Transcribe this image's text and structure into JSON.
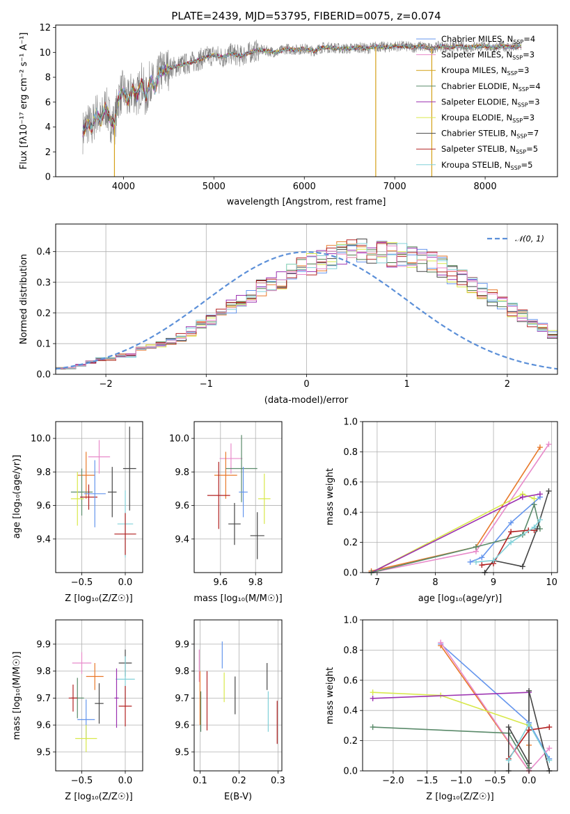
{
  "colors": [
    "#6495ed",
    "#e8792a",
    "#d4a017",
    "#4a7a4a",
    "#9b30b0",
    "#d8e84a",
    "#454545",
    "#b22222",
    "#80d0d8",
    "#e88aca",
    "#808080",
    "#5a8a6a"
  ],
  "chart_data": [
    {
      "type": "line",
      "title": "PLATE=2439, MJD=53795, FIBERID=0075, z=0.074",
      "xlabel": "wavelength [Angstrom, rest frame]",
      "ylabel": "Flux [fλ10⁻¹⁷ erg cm⁻² s⁻¹ A⁻¹]",
      "xlim": [
        3250,
        8800
      ],
      "ylim": [
        0,
        12.2
      ],
      "xticks": [
        4000,
        5000,
        6000,
        7000,
        8000
      ],
      "yticks": [
        0,
        2,
        4,
        6,
        8,
        10,
        12
      ],
      "legend_position": "right",
      "legend": [
        {
          "label": "Chabrier MILES, N",
          "sub": "SSP",
          "tail": "=4",
          "color": "#6495ed"
        },
        {
          "label": "Salpeter MILES, N",
          "sub": "SSP",
          "tail": "=3",
          "color": "#e88aca"
        },
        {
          "label": "Kroupa MILES, N",
          "sub": "SSP",
          "tail": "=3",
          "color": "#d4a017"
        },
        {
          "label": "Chabrier ELODIE, N",
          "sub": "SSP",
          "tail": "=4",
          "color": "#5a8a6a"
        },
        {
          "label": "Salpeter ELODIE, N",
          "sub": "SSP",
          "tail": "=3",
          "color": "#9b30b0"
        },
        {
          "label": "Kroupa ELODIE, N",
          "sub": "SSP",
          "tail": "=3",
          "color": "#d8e84a"
        },
        {
          "label": "Chabrier STELIB, N",
          "sub": "SSP",
          "tail": "=7",
          "color": "#454545"
        },
        {
          "label": "Salpeter STELIB, N",
          "sub": "SSP",
          "tail": "=5",
          "color": "#b22222"
        },
        {
          "label": "Kroupa STELIB, N",
          "sub": "SSP",
          "tail": "=5",
          "color": "#80d0d8"
        }
      ],
      "series": [
        {
          "x": [
            3550,
            3600,
            3650,
            3700,
            3750,
            3800,
            3850,
            3900,
            3950,
            4000,
            4050,
            4100,
            4150,
            4200,
            4250,
            4300,
            4350,
            4400,
            4500,
            4600,
            4700,
            4800,
            4900,
            5000,
            5100,
            5200,
            5300,
            5400,
            5500,
            5600,
            5700,
            5800,
            5900,
            6000,
            6100,
            6200,
            6300,
            6400,
            6500,
            6600,
            6700,
            6800,
            6900,
            7000,
            7100,
            7200,
            7300,
            7400,
            7500,
            7600,
            7700,
            7800,
            7900,
            8000,
            8100,
            8200,
            8300,
            8400
          ],
          "y": [
            3.6,
            4.3,
            3.9,
            5.2,
            4.4,
            5.7,
            4.6,
            4.2,
            6.5,
            6.9,
            6.0,
            7.1,
            6.4,
            7.6,
            6.3,
            7.9,
            7.0,
            8.4,
            8.7,
            8.9,
            9.1,
            9.3,
            9.6,
            9.8,
            9.6,
            9.9,
            9.7,
            10.0,
            10.2,
            10.1,
            10.0,
            10.3,
            10.2,
            10.3,
            10.1,
            10.4,
            10.4,
            10.3,
            10.3,
            10.4,
            10.3,
            10.5,
            10.4,
            10.5,
            10.5,
            10.4,
            10.5,
            10.3,
            10.5,
            10.4,
            10.5,
            10.4,
            10.5,
            10.5,
            10.4,
            10.5,
            10.4,
            10.5
          ]
        }
      ]
    },
    {
      "type": "histogram",
      "xlabel": "(data-model)/error",
      "ylabel": "Normed distribution",
      "xlim": [
        -2.5,
        2.5
      ],
      "ylim": [
        0,
        0.49
      ],
      "xticks": [
        -2,
        -1,
        0,
        1,
        2
      ],
      "yticks": [
        0.0,
        0.1,
        0.2,
        0.3,
        0.4
      ],
      "bin_width": 0.1,
      "bin_start": -2.5,
      "reference": {
        "label": "𝒩(0, 1)",
        "mean": 0,
        "sigma": 1,
        "color": "#5b8fd8"
      },
      "legend_position": "top-right",
      "series": [
        {
          "values": [
            0.02,
            0.02,
            0.03,
            0.04,
            0.05,
            0.05,
            0.06,
            0.06,
            0.08,
            0.09,
            0.1,
            0.11,
            0.12,
            0.14,
            0.16,
            0.18,
            0.2,
            0.22,
            0.24,
            0.26,
            0.28,
            0.3,
            0.31,
            0.33,
            0.35,
            0.36,
            0.37,
            0.38,
            0.39,
            0.4,
            0.41,
            0.4,
            0.4,
            0.39,
            0.39,
            0.38,
            0.37,
            0.36,
            0.35,
            0.33,
            0.31,
            0.29,
            0.27,
            0.25,
            0.23,
            0.21,
            0.19,
            0.17,
            0.15,
            0.13,
            0.11,
            0.1,
            0.09,
            0.08,
            0.07,
            0.06,
            0.05,
            0.04,
            0.03,
            0.03
          ]
        }
      ]
    },
    {
      "type": "scatter",
      "xlabel": "Z [log₁₀(Z/Z☉)]",
      "ylabel": "age  [log₁₀(age/yr)]",
      "xlim": [
        -0.8,
        0.2
      ],
      "ylim": [
        9.2,
        10.1
      ],
      "xticks": [
        -0.5,
        0.0
      ],
      "yticks": [
        9.4,
        9.6,
        9.8,
        10.0
      ],
      "points": [
        {
          "x": -0.3,
          "y": 9.89,
          "dx": 0.25,
          "dy": 0.2
        },
        {
          "x": -0.45,
          "y": 9.78,
          "dx": 0.2,
          "dy": 0.28
        },
        {
          "x": -0.5,
          "y": 9.68,
          "dx": 0.25,
          "dy": 0.28
        },
        {
          "x": -0.42,
          "y": 9.65,
          "dx": 0.2,
          "dy": 0.15
        },
        {
          "x": -0.35,
          "y": 9.67,
          "dx": 0.25,
          "dy": 0.4
        },
        {
          "x": -0.55,
          "y": 9.64,
          "dx": 0.15,
          "dy": 0.32
        },
        {
          "x": -0.15,
          "y": 9.68,
          "dx": 0.1,
          "dy": 0.3
        },
        {
          "x": 0.05,
          "y": 9.82,
          "dx": 0.15,
          "dy": 0.5
        },
        {
          "x": 0.0,
          "y": 9.49,
          "dx": 0.18,
          "dy": 0.4
        },
        {
          "x": 0.0,
          "y": 9.43,
          "dx": 0.25,
          "dy": 0.25
        }
      ]
    },
    {
      "type": "scatter",
      "xlabel": "mass [log₁₀(M/M☉)]",
      "ylabel": "",
      "xlim": [
        9.45,
        9.95
      ],
      "ylim": [
        9.2,
        10.1
      ],
      "xticks": [
        9.6,
        9.8
      ],
      "yticks": [
        9.4,
        9.6,
        9.8,
        10.0
      ],
      "points": [
        {
          "x": 9.66,
          "y": 9.88,
          "dx": 0.13,
          "dy": 0.18
        },
        {
          "x": 9.63,
          "y": 9.78,
          "dx": 0.13,
          "dy": 0.28
        },
        {
          "x": 9.72,
          "y": 9.82,
          "dx": 0.18,
          "dy": 0.4
        },
        {
          "x": 9.59,
          "y": 9.66,
          "dx": 0.13,
          "dy": 0.4
        },
        {
          "x": 9.73,
          "y": 9.68,
          "dx": 0.05,
          "dy": 0.3
        },
        {
          "x": 9.85,
          "y": 9.64,
          "dx": 0.07,
          "dy": 0.3
        },
        {
          "x": 9.68,
          "y": 9.49,
          "dx": 0.07,
          "dy": 0.25
        },
        {
          "x": 9.81,
          "y": 9.42,
          "dx": 0.08,
          "dy": 0.28
        }
      ]
    },
    {
      "type": "line",
      "xlabel": "age  [log₁₀(age/yr)]",
      "ylabel": "mass weight",
      "xlim": [
        6.75,
        10.1
      ],
      "ylim": [
        0,
        1.0
      ],
      "xticks": [
        7,
        8,
        9,
        10
      ],
      "yticks": [
        0.0,
        0.2,
        0.4,
        0.6,
        0.8,
        1.0
      ],
      "series": [
        {
          "x": [
            8.6,
            8.8,
            9.3,
            9.8
          ],
          "y": [
            0.07,
            0.1,
            0.33,
            0.5
          ]
        },
        {
          "x": [
            6.9,
            8.7,
            9.8
          ],
          "y": [
            0.01,
            0.17,
            0.83
          ]
        },
        {
          "x": [
            6.9,
            8.7,
            9.95
          ],
          "y": [
            0.0,
            0.14,
            0.85
          ]
        },
        {
          "x": [
            6.9,
            9.5,
            9.7
          ],
          "y": [
            0.0,
            0.52,
            0.49
          ]
        },
        {
          "x": [
            6.9,
            9.5,
            9.8
          ],
          "y": [
            0.0,
            0.5,
            0.52
          ]
        },
        {
          "x": [
            6.9,
            8.7,
            9.5,
            9.7,
            9.8
          ],
          "y": [
            0.0,
            0.17,
            0.25,
            0.45,
            0.29
          ]
        },
        {
          "x": [
            8.85,
            9.0,
            9.5,
            9.75,
            9.95
          ],
          "y": [
            0.0,
            0.08,
            0.04,
            0.29,
            0.54
          ]
        },
        {
          "x": [
            8.8,
            9.0,
            9.3,
            9.6,
            9.7
          ],
          "y": [
            0.05,
            0.06,
            0.27,
            0.28,
            0.28
          ]
        },
        {
          "x": [
            8.7,
            9.0,
            9.3,
            9.7,
            9.8
          ],
          "y": [
            0.07,
            0.08,
            0.2,
            0.3,
            0.35
          ]
        }
      ]
    },
    {
      "type": "scatter",
      "xlabel": "Z [log₁₀(Z/Z☉)]",
      "ylabel": "mass [log₁₀(M/M☉)]",
      "xlim": [
        -0.8,
        0.2
      ],
      "ylim": [
        9.43,
        9.99
      ],
      "xticks": [
        -0.5,
        0.0
      ],
      "yticks": [
        9.5,
        9.6,
        9.7,
        9.8,
        9.9
      ],
      "points": [
        {
          "x": -0.5,
          "y": 9.83,
          "dx": 0.22,
          "dy": 0.08
        },
        {
          "x": -0.35,
          "y": 9.78,
          "dx": 0.2,
          "dy": 0.1
        },
        {
          "x": -0.55,
          "y": 9.7,
          "dx": 0.15,
          "dy": 0.15
        },
        {
          "x": -0.6,
          "y": 9.7,
          "dx": 0.1,
          "dy": 0.1
        },
        {
          "x": -0.45,
          "y": 9.62,
          "dx": 0.2,
          "dy": 0.15
        },
        {
          "x": -0.45,
          "y": 9.55,
          "dx": 0.25,
          "dy": 0.1
        },
        {
          "x": -0.3,
          "y": 9.68,
          "dx": 0.1,
          "dy": 0.15
        },
        {
          "x": 0.0,
          "y": 9.83,
          "dx": 0.15,
          "dy": 0.1
        },
        {
          "x": 0.0,
          "y": 9.77,
          "dx": 0.22,
          "dy": 0.17
        },
        {
          "x": 0.0,
          "y": 9.67,
          "dx": 0.15,
          "dy": 0.15
        },
        {
          "x": -0.1,
          "y": 9.7,
          "dx": 0.05,
          "dy": 0.22
        }
      ]
    },
    {
      "type": "errorbar",
      "xlabel": "E(B-V)",
      "ylabel": "",
      "xlim": [
        0.085,
        0.31
      ],
      "ylim": [
        9.43,
        9.99
      ],
      "xticks": [
        0.1,
        0.2,
        0.3
      ],
      "yticks": [
        9.5,
        9.6,
        9.7,
        9.8,
        9.9
      ],
      "points": [
        {
          "x": 0.098,
          "y": 9.82,
          "dy": 0.12
        },
        {
          "x": 0.1,
          "y": 9.7,
          "dy": 0.2
        },
        {
          "x": 0.102,
          "y": 9.65,
          "dy": 0.15
        },
        {
          "x": 0.118,
          "y": 9.69,
          "dy": 0.22
        },
        {
          "x": 0.157,
          "y": 9.86,
          "dy": 0.1
        },
        {
          "x": 0.162,
          "y": 9.74,
          "dy": 0.11
        },
        {
          "x": 0.19,
          "y": 9.71,
          "dy": 0.14
        },
        {
          "x": 0.272,
          "y": 9.78,
          "dy": 0.1
        },
        {
          "x": 0.275,
          "y": 9.65,
          "dy": 0.15
        },
        {
          "x": 0.298,
          "y": 9.61,
          "dy": 0.16
        }
      ]
    },
    {
      "type": "line",
      "xlabel": "Z [log₁₀(Z/Z☉)]",
      "ylabel": "mass weight",
      "xlim": [
        -2.45,
        0.42
      ],
      "ylim": [
        0,
        1.0
      ],
      "xticks": [
        -2.0,
        -1.5,
        -1.0,
        -0.5,
        0.0
      ],
      "yticks": [
        0.0,
        0.2,
        0.4,
        0.6,
        0.8,
        1.0
      ],
      "series": [
        {
          "x": [
            -1.3,
            0.0,
            0.3
          ],
          "y": [
            0.84,
            0.32,
            0.08
          ]
        },
        {
          "x": [
            -1.3,
            0.0,
            0.0
          ],
          "y": [
            0.83,
            0.0,
            0.17
          ]
        },
        {
          "x": [
            -1.3,
            0.0,
            0.3
          ],
          "y": [
            0.85,
            0.0,
            0.15
          ]
        },
        {
          "x": [
            -2.3,
            -1.3,
            0.0
          ],
          "y": [
            0.52,
            0.5,
            0.3
          ]
        },
        {
          "x": [
            -2.3,
            0.0
          ],
          "y": [
            0.48,
            0.52
          ]
        },
        {
          "x": [
            -2.3,
            -0.3,
            0.0
          ],
          "y": [
            0.29,
            0.25,
            0.02
          ]
        },
        {
          "x": [
            -0.3,
            -0.3,
            0.0,
            0.0,
            0.3
          ],
          "y": [
            0.0,
            0.29,
            0.05,
            0.53,
            0.0
          ]
        },
        {
          "x": [
            -0.3,
            0.0,
            0.3
          ],
          "y": [
            0.08,
            0.27,
            0.29
          ]
        },
        {
          "x": [
            -0.3,
            0.0,
            0.3
          ],
          "y": [
            0.07,
            0.31,
            0.07
          ]
        }
      ]
    }
  ]
}
